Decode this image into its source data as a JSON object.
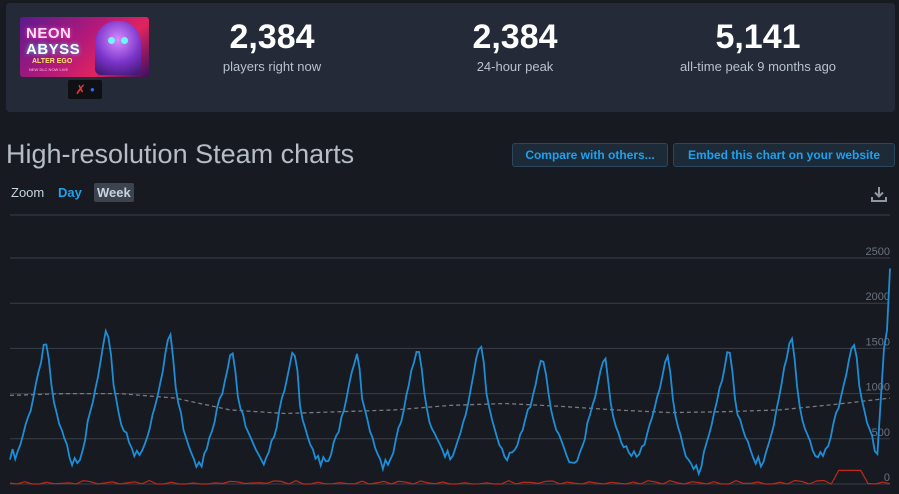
{
  "game": {
    "cover_line1": "NEON",
    "cover_line2": "ABYSS",
    "cover_line3": "ALTER EGO",
    "cover_line4": "NEW DLC NOW LIVE",
    "platform_icons": [
      "xbox-x-icon",
      "playstation-icon"
    ]
  },
  "stats": [
    {
      "value": "2,384",
      "label": "players right now"
    },
    {
      "value": "2,384",
      "label": "24-hour peak"
    },
    {
      "value": "5,141",
      "label": "all-time peak 9 months ago"
    }
  ],
  "section_title": "High-resolution Steam charts",
  "buttons": {
    "compare": "Compare with others...",
    "embed": "Embed this chart on your website"
  },
  "zoom": {
    "label": "Zoom",
    "options": [
      "Day",
      "Week"
    ],
    "selected": "Week"
  },
  "download_icon": "download-icon",
  "colors": {
    "players_line": "#1d8ed6",
    "average_line": "#777b80",
    "secondary_line": "#c0291a",
    "background": "#171a21"
  },
  "chart_data": {
    "type": "line",
    "ylim": [
      0,
      2500
    ],
    "y_ticks": [
      "0",
      "500",
      "1000",
      "1500",
      "2000",
      "2500"
    ],
    "days": 14,
    "grid": true,
    "series": [
      {
        "role": "players",
        "daily_peaks": [
          1600,
          1700,
          1650,
          1520,
          1450,
          1450,
          1550,
          1520,
          1440,
          1380,
          1400,
          1530,
          1600,
          1600
        ],
        "daily_troughs": [
          300,
          290,
          330,
          270,
          300,
          220,
          250,
          300,
          320,
          270,
          300,
          200,
          240,
          300
        ],
        "final_value": 2384
      },
      {
        "role": "average",
        "values": [
          980,
          1000,
          1000,
          950,
          820,
          780,
          800,
          820,
          870,
          890,
          860,
          820,
          790,
          800,
          820,
          880,
          950
        ]
      },
      {
        "role": "secondary",
        "base": 25,
        "end_spike": 150
      }
    ]
  }
}
